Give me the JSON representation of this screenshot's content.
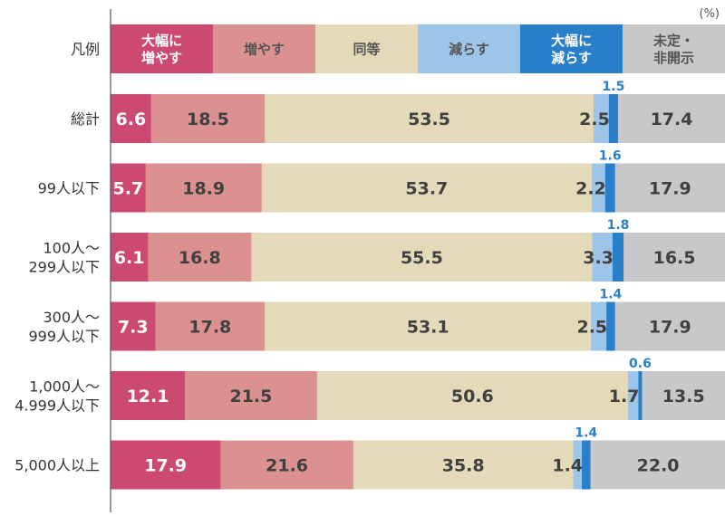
{
  "chart_data": {
    "type": "bar",
    "orientation": "horizontal",
    "stacked": true,
    "percent_stacked": true,
    "unit_label": "(%)",
    "legend_row_label": "凡例",
    "legend_position": "top (as first row)",
    "categories": [
      "総計",
      "99人以下",
      "100人～\n299人以下",
      "300人～\n999人以下",
      "1,000人～\n4.999人以下",
      "5,000人以上"
    ],
    "series": [
      {
        "name": "大幅に\n増やす",
        "color": "#cc4a72",
        "values": [
          6.6,
          5.7,
          6.1,
          7.3,
          12.1,
          17.9
        ]
      },
      {
        "name": "増やす",
        "color": "#db9190",
        "values": [
          18.5,
          18.9,
          16.8,
          17.8,
          21.5,
          21.6
        ]
      },
      {
        "name": "同等",
        "color": "#e4d9b9",
        "values": [
          53.5,
          53.7,
          55.5,
          53.1,
          50.6,
          35.8
        ]
      },
      {
        "name": "減らす",
        "color": "#9dc5ea",
        "values": [
          2.5,
          2.2,
          3.3,
          2.5,
          1.7,
          1.4
        ]
      },
      {
        "name": "大幅に\n減らす",
        "color": "#2a7fcb",
        "values": [
          1.5,
          1.6,
          1.8,
          1.4,
          0.6,
          1.4
        ]
      },
      {
        "name": "未定・\n非開示",
        "color": "#c8c8ca",
        "values": [
          17.4,
          17.9,
          16.5,
          17.9,
          13.5,
          22.0
        ]
      }
    ],
    "xlim": [
      0,
      100
    ],
    "grid": false
  }
}
